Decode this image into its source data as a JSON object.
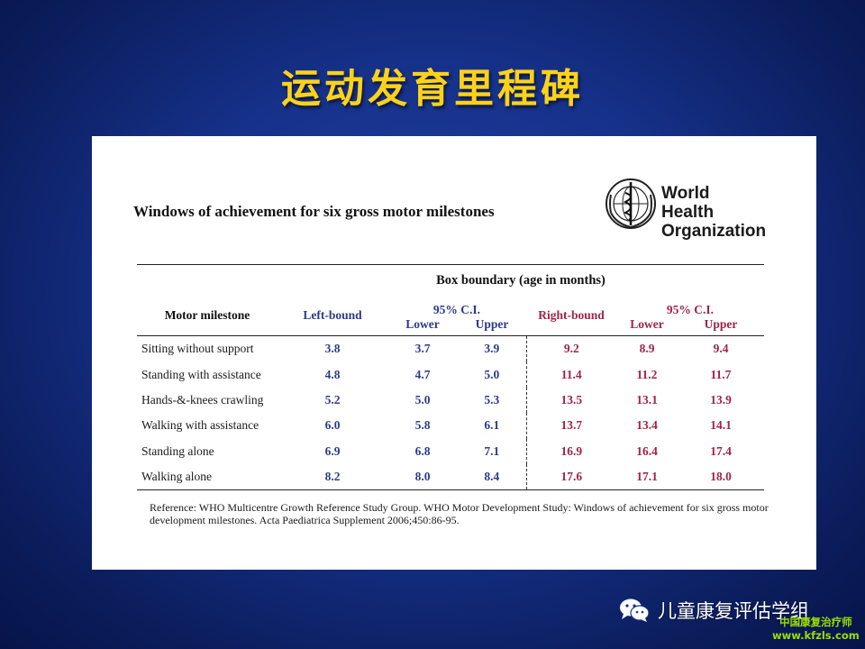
{
  "slide": {
    "title": "运动发育里程碑"
  },
  "card": {
    "heading": "Windows of achievement for six gross motor milestones",
    "logo": {
      "line1": "World Health",
      "line2": "Organization",
      "icon": "who-emblem-icon"
    },
    "table": {
      "group_header": "Box boundary (age in months)",
      "col_milestone": "Motor milestone",
      "col_left_bound": "Left-bound",
      "col_left_ci": "95% C.I.",
      "col_right_bound": "Right-bound",
      "col_right_ci": "95% C.I.",
      "lower": "Lower",
      "upper": "Upper",
      "rows": [
        {
          "name": "Sitting without support",
          "left": "3.8",
          "left_lower": "3.7",
          "left_upper": "3.9",
          "right": "9.2",
          "right_lower": "8.9",
          "right_upper": "9.4"
        },
        {
          "name": "Standing with assistance",
          "left": "4.8",
          "left_lower": "4.7",
          "left_upper": "5.0",
          "right": "11.4",
          "right_lower": "11.2",
          "right_upper": "11.7"
        },
        {
          "name": "Hands-&-knees crawling",
          "left": "5.2",
          "left_lower": "5.0",
          "left_upper": "5.3",
          "right": "13.5",
          "right_lower": "13.1",
          "right_upper": "13.9"
        },
        {
          "name": "Walking with assistance",
          "left": "6.0",
          "left_lower": "5.8",
          "left_upper": "6.1",
          "right": "13.7",
          "right_lower": "13.4",
          "right_upper": "14.1"
        },
        {
          "name": "Standing alone",
          "left": "6.9",
          "left_lower": "6.8",
          "left_upper": "7.1",
          "right": "16.9",
          "right_lower": "16.4",
          "right_upper": "17.4"
        },
        {
          "name": "Walking alone",
          "left": "8.2",
          "left_lower": "8.0",
          "left_upper": "8.4",
          "right": "17.6",
          "right_lower": "17.1",
          "right_upper": "18.0"
        }
      ]
    },
    "reference": "Reference: WHO Multicentre Growth Reference Study Group. WHO Motor Development Study: Windows of achievement for six gross motor development milestones. Acta Paediatrica Supplement 2006;450:86-95."
  },
  "footer": {
    "wechat_icon": "wechat-icon",
    "wechat_label": "儿童康复评估学组",
    "watermark_line1": "中国康复治疗师",
    "watermark_line2": "www.kfzls.com"
  },
  "colors": {
    "title": "#ffd21a",
    "left_values": "#2d3a8a",
    "right_values": "#a0234a",
    "background": "#16318a"
  }
}
